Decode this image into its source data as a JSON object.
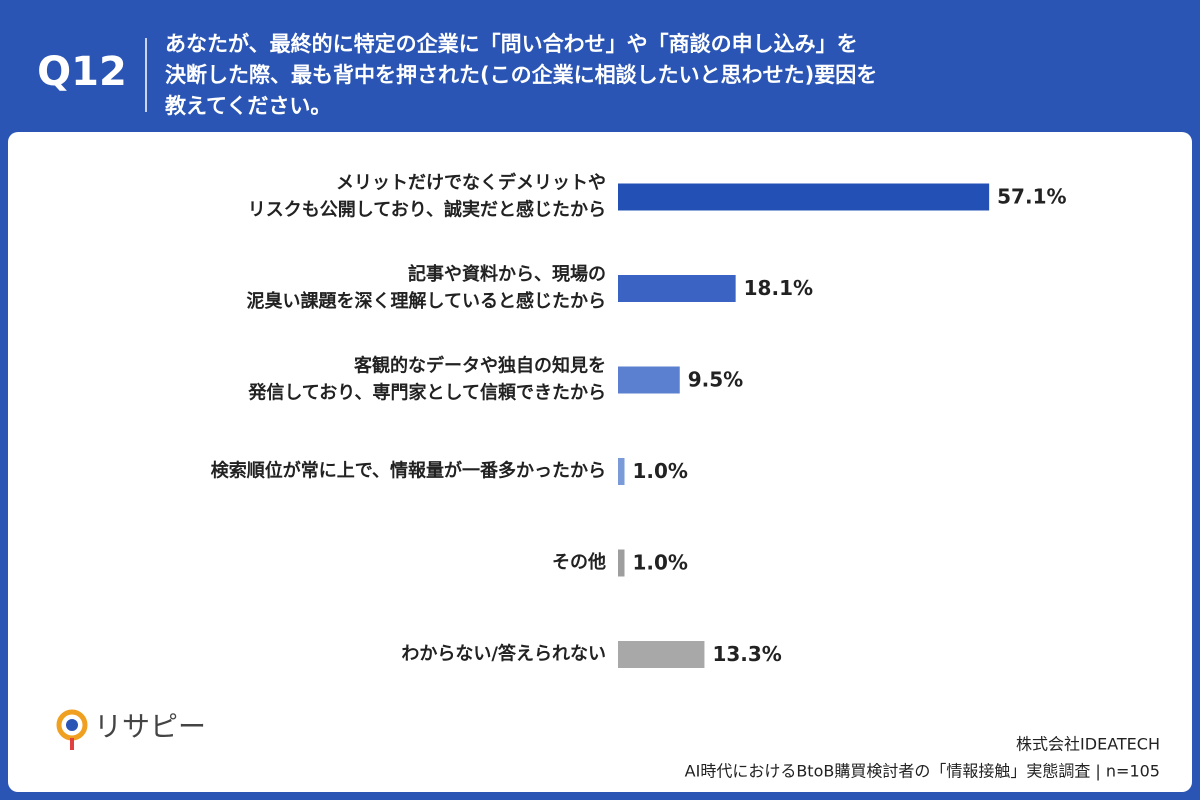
{
  "chart_data": {
    "type": "bar",
    "orientation": "horizontal",
    "label": "Q12",
    "title": [
      "あなたが、最終的に特定の企業に「問い合わせ」や「商談の申し込み」を",
      "決断した際、最も背中を押された(この企業に相談したいと思わせた)要因を",
      "教えてください。"
    ],
    "categories": [
      [
        "メリットだけでなくデメリットや",
        "リスクも公開しており、誠実だと感じたから"
      ],
      [
        "記事や資料から、現場の",
        "泥臭い課題を深く理解していると感じたから"
      ],
      [
        "客観的なデータや独自の知見を",
        "発信しており、専門家として信頼できたから"
      ],
      [
        "検索順位が常に上で、情報量が一番多かったから"
      ],
      [
        "その他"
      ],
      [
        "わからない/答えられない"
      ]
    ],
    "values": [
      57.1,
      18.1,
      9.5,
      1.0,
      1.0,
      13.3
    ],
    "value_labels": [
      "57.1%",
      "18.1%",
      "9.5%",
      "1.0%",
      "1.0%",
      "13.3%"
    ],
    "colors": [
      "#2350b4",
      "#3a63c4",
      "#5a80cf",
      "#7a9ad8",
      "#9e9e9e",
      "#a8a8a8"
    ],
    "logo": "リサピー",
    "source": [
      "株式会社IDEATECH",
      "AI時代におけるBtoB購買検討者の「情報接触」実態調査 | n=105"
    ]
  }
}
